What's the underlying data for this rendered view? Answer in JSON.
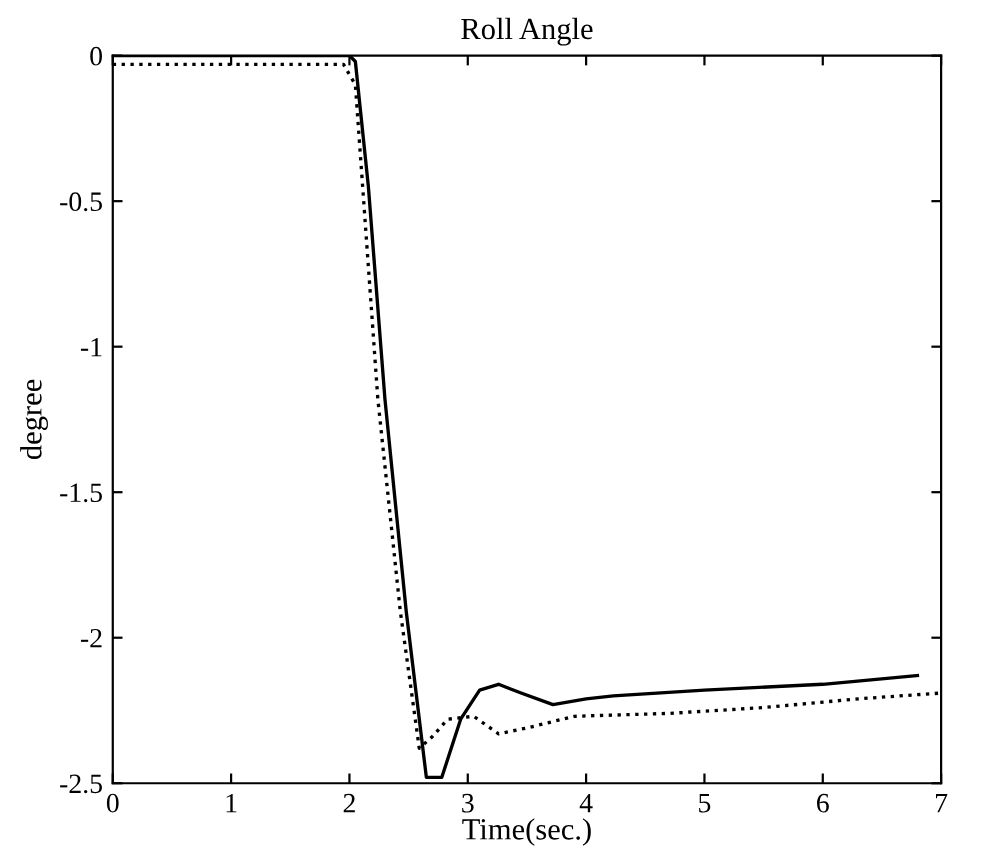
{
  "chart_data": {
    "type": "line",
    "title": "Roll Angle",
    "xlabel": "Time(sec.)",
    "ylabel": "degree",
    "xlim": [
      0,
      7
    ],
    "ylim": [
      -2.5,
      0
    ],
    "xticks": [
      0,
      1,
      2,
      3,
      4,
      5,
      6,
      7
    ],
    "yticks": [
      0,
      -0.5,
      -1,
      -1.5,
      -2,
      -2.5
    ],
    "grid": false,
    "legend": false,
    "series": [
      {
        "color": "#000000",
        "line_style": "solid",
        "x": [
          0,
          1,
          2.0,
          2.05,
          2.16,
          2.3,
          2.48,
          2.65,
          2.78,
          2.94,
          3.1,
          3.26,
          3.45,
          3.72,
          4.0,
          4.23,
          5,
          6,
          6.8
        ],
        "values": [
          0,
          0,
          0,
          -0.02,
          -0.45,
          -1.18,
          -1.91,
          -2.48,
          -2.48,
          -2.28,
          -2.18,
          -2.16,
          -2.19,
          -2.23,
          -2.21,
          -2.2,
          -2.18,
          -2.16,
          -2.13
        ]
      },
      {
        "color": "#000000",
        "line_style": "dotted",
        "x": [
          0,
          1,
          1.95,
          2.05,
          2.24,
          2.43,
          2.59,
          2.7,
          2.83,
          3.05,
          3.26,
          3.5,
          3.9,
          4.7,
          5.5,
          6.3,
          7
        ],
        "values": [
          -0.03,
          -0.03,
          -0.03,
          -0.1,
          -1.18,
          -1.91,
          -2.38,
          -2.34,
          -2.28,
          -2.27,
          -2.33,
          -2.31,
          -2.27,
          -2.26,
          -2.24,
          -2.21,
          -2.19
        ]
      }
    ]
  }
}
